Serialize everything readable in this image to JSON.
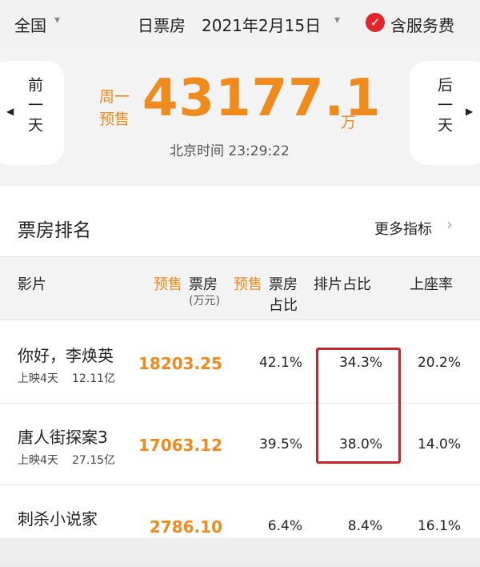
{
  "header": {
    "region": "全国",
    "mode": "日票房",
    "date": "2021年2月15日",
    "service": "含服务费"
  },
  "summary": {
    "prev": "前一天",
    "next": "后一天",
    "label_lines": [
      "周一",
      "预售"
    ],
    "value": "43177.1",
    "unit": "万",
    "time": "北京时间 23:29:22"
  },
  "ranking": {
    "title": "票房排名",
    "more": "更多指标"
  },
  "table": {
    "headers": {
      "film": "影片",
      "presale1": "预售",
      "box1": "票房",
      "box1_unit": "(万元)",
      "presale2": "预售",
      "box2": "票房",
      "share": "占比",
      "screen": "排片占比",
      "seat": "上座率"
    },
    "rows": [
      {
        "name": "你好，李焕英",
        "days": "上映4天",
        "total": "12.11亿",
        "box": "18203.25",
        "box_share": "42.1%",
        "screen_share": "34.3%",
        "seat_rate": "20.2%"
      },
      {
        "name": "唐人街探案3",
        "days": "上映4天",
        "total": "27.15亿",
        "box": "17063.12",
        "box_share": "39.5%",
        "screen_share": "38.0%",
        "seat_rate": "14.0%"
      },
      {
        "name": "刺杀小说家",
        "box": "2786.10",
        "box_share": "6.4%",
        "screen_share": "8.4%",
        "seat_rate": "16.1%"
      }
    ]
  }
}
